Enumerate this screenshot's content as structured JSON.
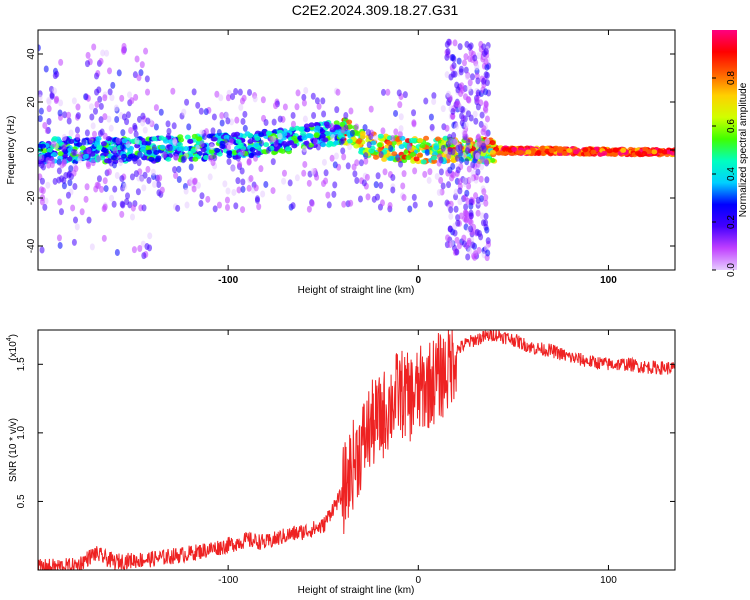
{
  "title": "C2E2.2024.309.18.27.G31",
  "chart_data": [
    {
      "type": "heatmap",
      "xlabel": "Height of straight line (km)",
      "ylabel": "Frequency (Hz)",
      "xlim": [
        -200,
        135
      ],
      "ylim": [
        -50,
        50
      ],
      "xticks": [
        -100,
        0,
        100
      ],
      "yticks": [
        -40,
        -20,
        0,
        20,
        40
      ],
      "colorbar": {
        "label": "Normalized spectral amplitude",
        "range": [
          0,
          1
        ],
        "ticks": [
          "0.0",
          "0.2",
          "0.4",
          "0.6",
          "0.8"
        ],
        "colors": [
          "#e6ccff",
          "#c040ff",
          "#4400ff",
          "#0000ff",
          "#00d0ff",
          "#00ffc0",
          "#40ff00",
          "#d0ff00",
          "#ffd000",
          "#ff6000",
          "#ff0000",
          "#ff0080"
        ]
      },
      "ridge": [
        {
          "x": -200,
          "y": 0
        },
        {
          "x": -150,
          "y": 0
        },
        {
          "x": -110,
          "y": 1
        },
        {
          "x": -80,
          "y": 3
        },
        {
          "x": -60,
          "y": 5
        },
        {
          "x": -45,
          "y": 7
        },
        {
          "x": -35,
          "y": 8
        },
        {
          "x": -30,
          "y": 3
        },
        {
          "x": -20,
          "y": 1
        },
        {
          "x": 0,
          "y": 0
        },
        {
          "x": 20,
          "y": 0
        },
        {
          "x": 135,
          "y": -1
        }
      ]
    },
    {
      "type": "line",
      "xlabel": "Height of straight line (km)",
      "ylabel": "SNR (10 * v/v)",
      "yscale_label": "(x10",
      "yscale_exp": "4",
      "xlim": [
        -200,
        135
      ],
      "ylim": [
        0,
        1.75
      ],
      "xticks": [
        -100,
        0,
        100
      ],
      "yticks": [
        "0.5",
        "1.0",
        "1.5"
      ],
      "color": "#ee2222",
      "series": [
        {
          "values": [
            [
              -200,
              0.02
            ],
            [
              -180,
              0.03
            ],
            [
              -170,
              0.12
            ],
            [
              -160,
              0.06
            ],
            [
              -140,
              0.08
            ],
            [
              -120,
              0.12
            ],
            [
              -100,
              0.18
            ],
            [
              -90,
              0.22
            ],
            [
              -80,
              0.2
            ],
            [
              -70,
              0.25
            ],
            [
              -60,
              0.28
            ],
            [
              -50,
              0.32
            ],
            [
              -45,
              0.45
            ],
            [
              -40,
              0.55
            ],
            [
              -35,
              0.75
            ],
            [
              -30,
              0.9
            ],
            [
              -25,
              1.05
            ],
            [
              -20,
              1.1
            ],
            [
              -15,
              1.2
            ],
            [
              -10,
              1.3
            ],
            [
              -5,
              1.25
            ],
            [
              0,
              1.3
            ],
            [
              5,
              1.35
            ],
            [
              10,
              1.4
            ],
            [
              15,
              1.45
            ],
            [
              20,
              1.6
            ],
            [
              25,
              1.65
            ],
            [
              30,
              1.68
            ],
            [
              40,
              1.72
            ],
            [
              50,
              1.68
            ],
            [
              60,
              1.62
            ],
            [
              70,
              1.6
            ],
            [
              80,
              1.55
            ],
            [
              90,
              1.52
            ],
            [
              100,
              1.5
            ],
            [
              110,
              1.5
            ],
            [
              120,
              1.48
            ],
            [
              135,
              1.47
            ]
          ]
        }
      ]
    }
  ]
}
